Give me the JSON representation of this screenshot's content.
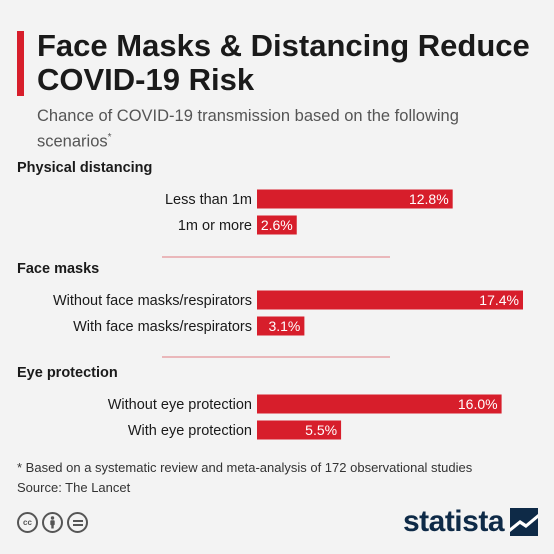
{
  "title": "Face Masks & Distancing Reduce COVID-19 Risk",
  "subtitle": "Chance of COVID-19 transmission based on the following scenarios",
  "subtitle_marker": "*",
  "footnote": "* Based on a systematic review and meta-analysis of 172 observational studies",
  "source": "Source: The Lancet",
  "brand": "statista",
  "colors": {
    "bar": "#d71e2b",
    "divider": "#e07b80",
    "accent": "#d71e2b",
    "brand": "#0e2a47"
  },
  "icons": [
    "cc-icon",
    "attribution-icon",
    "no-derivatives-icon"
  ],
  "chart_data": {
    "type": "bar",
    "orientation": "horizontal",
    "unit": "%",
    "groups": [
      {
        "name": "Physical distancing",
        "categories": [
          "Less than 1m",
          "1m or more"
        ],
        "values": [
          12.8,
          2.6
        ],
        "labels": [
          "12.8%",
          "2.6%"
        ]
      },
      {
        "name": "Face masks",
        "categories": [
          "Without face masks/respirators",
          "With face masks/respirators"
        ],
        "values": [
          17.4,
          3.1
        ],
        "labels": [
          "17.4%",
          "3.1%"
        ]
      },
      {
        "name": "Eye protection",
        "categories": [
          "Without eye protection",
          "With eye protection"
        ],
        "values": [
          16.0,
          5.5
        ],
        "labels": [
          "16.0%",
          "5.5%"
        ]
      }
    ],
    "xlim": [
      0,
      17.4
    ],
    "grid": false,
    "legend": "none"
  }
}
